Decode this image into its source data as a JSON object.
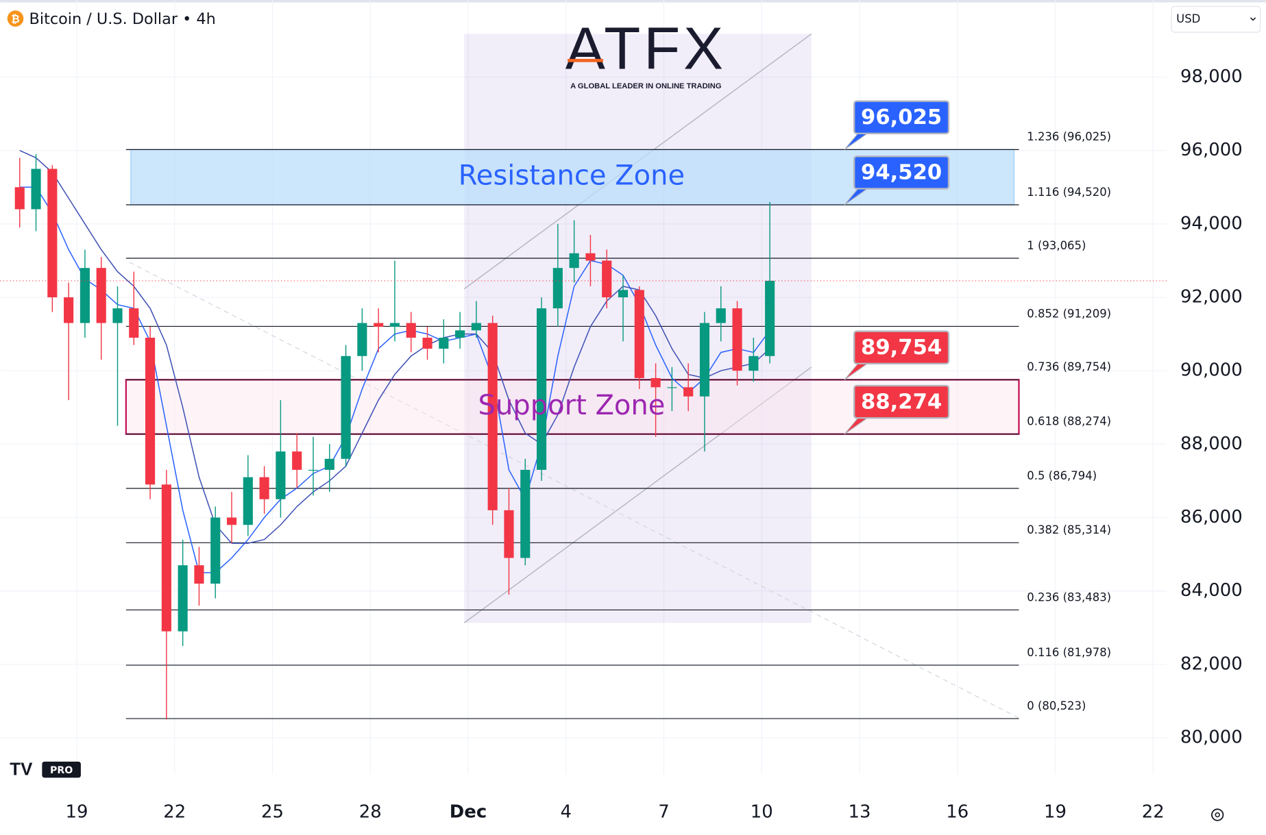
{
  "ui": {
    "currency": "USD",
    "brand": "ATFX",
    "tagline": "A GLOBAL LEADER IN ONLINE TRADING",
    "badge": "PRO"
  },
  "chart_data": {
    "type": "candlestick",
    "title": "Bitcoin / U.S. Dollar • 4h",
    "up_color": "#089981",
    "down_color": "#f23645",
    "grid": true,
    "categories": [
      null,
      null,
      null,
      null,
      "19",
      null,
      null,
      null,
      null,
      null,
      "22",
      null,
      null,
      null,
      null,
      null,
      "25",
      null,
      null,
      null,
      null,
      null,
      "28",
      null,
      null,
      null,
      null,
      null,
      "Dec",
      null,
      null,
      null,
      null,
      null,
      "4",
      null,
      null,
      null,
      null,
      null,
      "7",
      null,
      null,
      null,
      null,
      null,
      "10",
      null,
      null,
      null,
      null,
      null,
      "13",
      null,
      null,
      null,
      null,
      null,
      "16",
      null,
      null,
      null,
      null,
      null,
      "19",
      null,
      null,
      null,
      null,
      null,
      "22"
    ],
    "open": [
      95000,
      94400,
      95500,
      92000,
      91300,
      92800,
      91300,
      91700,
      90900,
      86900,
      82900,
      84700,
      84200,
      86000,
      85800,
      87100,
      86500,
      87800,
      87300,
      87300,
      87600,
      90400,
      91300,
      91200,
      91300,
      90900,
      90600,
      90900,
      91100,
      91300,
      86200,
      84900,
      87300,
      91700,
      92800,
      93200,
      93000,
      92000,
      92200,
      89800,
      89550,
      89550,
      89300,
      91300,
      91700,
      90000,
      90400,
      null,
      null,
      null,
      null,
      null,
      null,
      null,
      null,
      null,
      null,
      null,
      null,
      null,
      null,
      null,
      null,
      null,
      null,
      null,
      null,
      null,
      null,
      null,
      null
    ],
    "high": [
      95800,
      95900,
      95600,
      92400,
      93300,
      93100,
      92300,
      92700,
      91200,
      87300,
      85400,
      85200,
      86300,
      86700,
      87700,
      87400,
      89200,
      88300,
      88200,
      88000,
      90700,
      91700,
      91700,
      93000,
      91600,
      91200,
      91400,
      91600,
      91900,
      91500,
      86800,
      87600,
      92000,
      94000,
      94100,
      93700,
      93300,
      92600,
      92300,
      90200,
      90100,
      90200,
      91600,
      92300,
      91900,
      90900,
      94600,
      null,
      null,
      null,
      null,
      null,
      null,
      null,
      null,
      null,
      null,
      null,
      null,
      null,
      null,
      null,
      null,
      null,
      null,
      null,
      null,
      null,
      null,
      null,
      null
    ],
    "low": [
      93900,
      93800,
      91600,
      89200,
      90900,
      90300,
      88500,
      90700,
      86500,
      80500,
      82500,
      83600,
      83800,
      85300,
      85500,
      86100,
      86000,
      86800,
      86600,
      86700,
      87400,
      90000,
      90500,
      90800,
      90500,
      90300,
      90200,
      90600,
      90900,
      85800,
      83900,
      84700,
      87000,
      91200,
      92400,
      92300,
      91700,
      90800,
      89500,
      88200,
      88900,
      88900,
      87800,
      90800,
      89600,
      89700,
      90200,
      null,
      null,
      null,
      null,
      null,
      null,
      null,
      null,
      null,
      null,
      null,
      null,
      null,
      null,
      null,
      null,
      null,
      null,
      null,
      null,
      null,
      null,
      null,
      null
    ],
    "close": [
      94400,
      95500,
      92000,
      91300,
      92800,
      91300,
      91700,
      90900,
      86900,
      82900,
      84700,
      84200,
      86000,
      85800,
      87100,
      86500,
      87800,
      87300,
      87300,
      87600,
      90400,
      91300,
      91200,
      91300,
      90900,
      90600,
      90900,
      91100,
      91300,
      86200,
      84900,
      87300,
      91700,
      92800,
      93200,
      93000,
      92000,
      92200,
      89800,
      89550,
      89550,
      89300,
      91300,
      91700,
      90000,
      90400,
      92450,
      null,
      null,
      null,
      null,
      null,
      null,
      null,
      null,
      null,
      null,
      null,
      null,
      null,
      null,
      null,
      null,
      null,
      null,
      null,
      null,
      null,
      null,
      null,
      null
    ],
    "moving_averages": [
      {
        "color": "#2962ff",
        "values": [
          95000,
          95000,
          94300,
          93300,
          92500,
          92200,
          91800,
          91700,
          90800,
          88500,
          86200,
          84500,
          84500,
          84900,
          85400,
          86000,
          86500,
          86800,
          87200,
          87400,
          88200,
          89500,
          90600,
          91000,
          91100,
          91000,
          90800,
          90900,
          91000,
          89800,
          87300,
          86500,
          88000,
          90400,
          92300,
          93000,
          92900,
          92600,
          91800,
          90700,
          89800,
          89400,
          89800,
          90500,
          90600,
          90500,
          91100,
          null,
          null,
          null,
          null,
          null,
          null,
          null,
          null,
          null,
          null,
          null,
          null,
          null,
          null,
          null,
          null,
          null,
          null,
          null,
          null,
          null,
          null,
          null,
          null
        ]
      },
      {
        "color": "#3f51b5",
        "values": [
          96000,
          95800,
          95400,
          94700,
          94000,
          93300,
          92700,
          92300,
          91700,
          90700,
          89000,
          87100,
          85800,
          85300,
          85300,
          85400,
          85800,
          86300,
          86700,
          87000,
          87400,
          88300,
          89200,
          89900,
          90400,
          90700,
          90900,
          91000,
          91000,
          90500,
          89200,
          88300,
          88000,
          88800,
          90100,
          91200,
          91900,
          92300,
          92200,
          91500,
          90600,
          89900,
          89800,
          90000,
          90100,
          90200,
          90600,
          null,
          null,
          null,
          null,
          null,
          null,
          null,
          null,
          null,
          null,
          null,
          null,
          null,
          null,
          null,
          null,
          null,
          null,
          null,
          null,
          null,
          null,
          null,
          null
        ]
      }
    ],
    "ylim": [
      79000,
      100100
    ],
    "yticks": [
      {
        "value": 80000,
        "label": "80,000"
      },
      {
        "value": 82000,
        "label": "82,000"
      },
      {
        "value": 84000,
        "label": "84,000"
      },
      {
        "value": 86000,
        "label": "86,000"
      },
      {
        "value": 88000,
        "label": "88,000"
      },
      {
        "value": 90000,
        "label": "90,000"
      },
      {
        "value": 92000,
        "label": "92,000"
      },
      {
        "value": 94000,
        "label": "94,000"
      },
      {
        "value": 96000,
        "label": "96,000"
      },
      {
        "value": 98000,
        "label": "98,000"
      }
    ],
    "fib_levels": [
      {
        "value": 96025,
        "label": "1.236 (96,025)"
      },
      {
        "value": 94520,
        "label": "1.116 (94,520)"
      },
      {
        "value": 93065,
        "label": "1 (93,065)"
      },
      {
        "value": 91209,
        "label": "0.852 (91,209)"
      },
      {
        "value": 89754,
        "label": "0.736 (89,754)"
      },
      {
        "value": 88274,
        "label": "0.618 (88,274)"
      },
      {
        "value": 86794,
        "label": "0.5 (86,794)"
      },
      {
        "value": 85314,
        "label": "0.382 (85,314)"
      },
      {
        "value": 83483,
        "label": "0.236 (83,483)"
      },
      {
        "value": 81978,
        "label": "0.116 (81,978)"
      },
      {
        "value": 80523,
        "label": "0 (80,523)"
      }
    ],
    "zones": [
      {
        "label": "Resistance Zone",
        "from": 94520,
        "to": 96025,
        "color": "#2962ff"
      },
      {
        "label": "Support Zone",
        "from": 88274,
        "to": 89754,
        "color": "#9c27b0"
      }
    ],
    "price_labels": [
      {
        "value": 96025,
        "label": "96,025",
        "color": "#2962ff"
      },
      {
        "value": 94520,
        "label": "94,520",
        "color": "#2962ff"
      },
      {
        "value": 89754,
        "label": "89,754",
        "color": "#f23645"
      },
      {
        "value": 88274,
        "label": "88,274",
        "color": "#f23645"
      }
    ]
  }
}
